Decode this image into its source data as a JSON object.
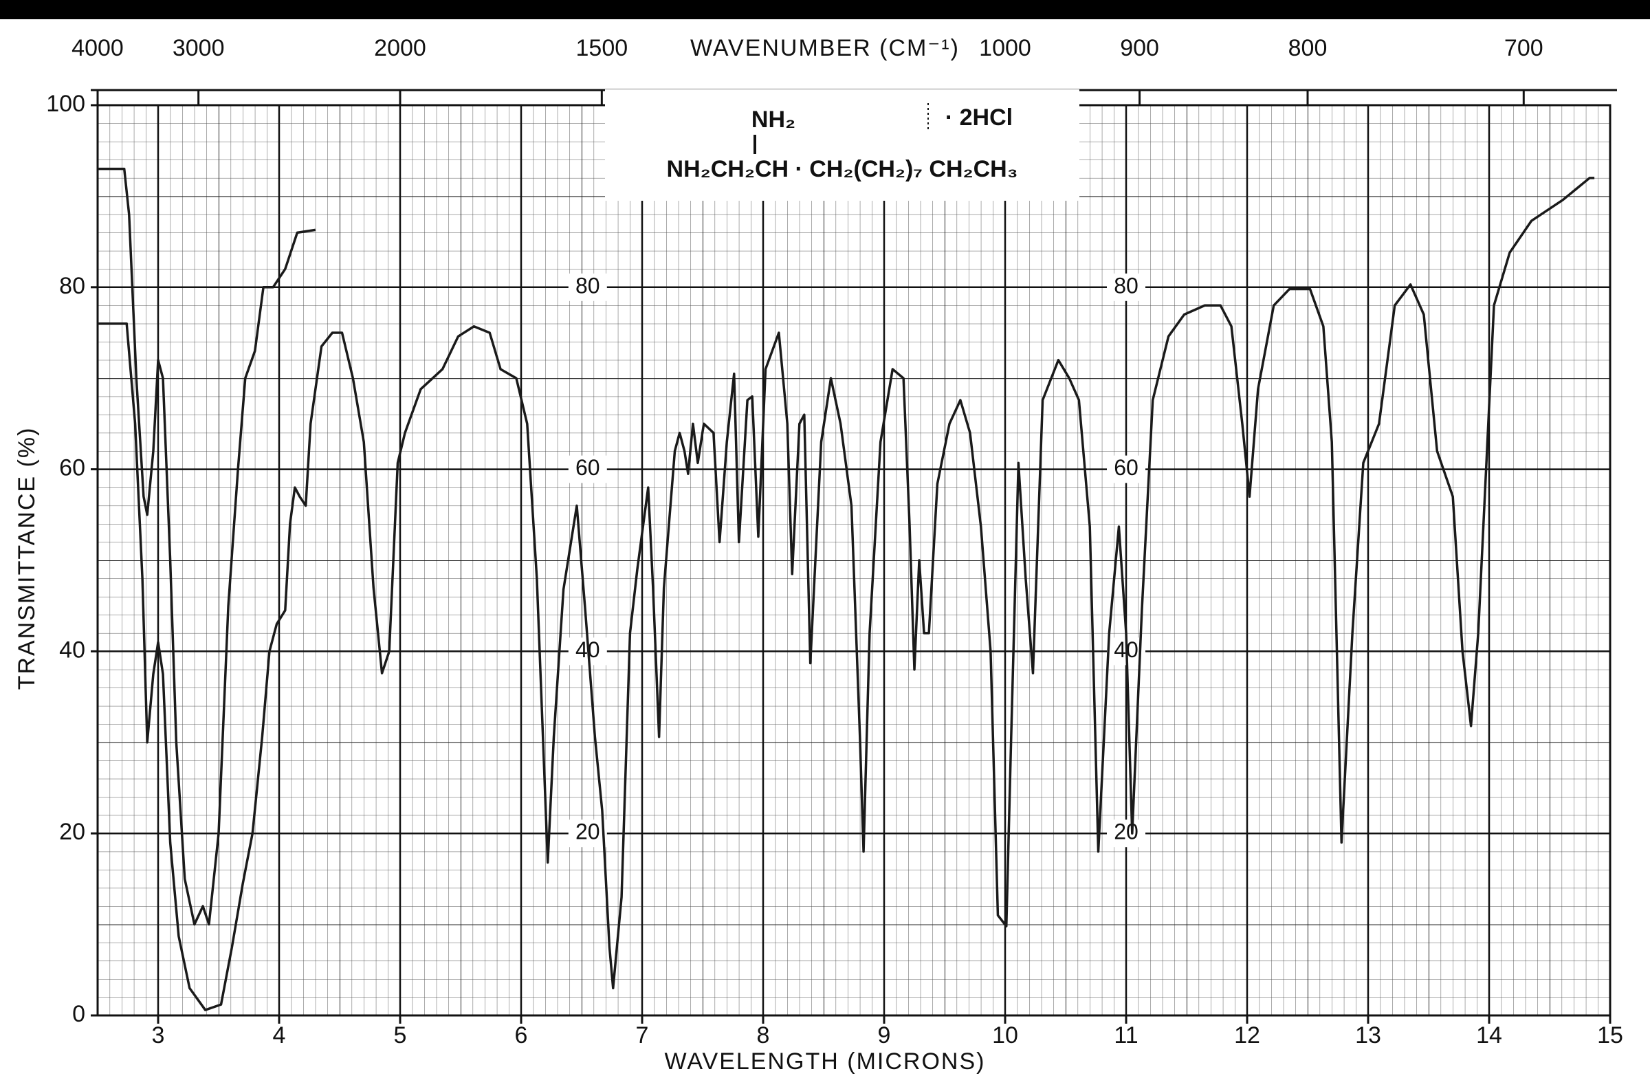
{
  "chart_data": {
    "type": "line",
    "xlabel": "WAVELENGTH (MICRONS)",
    "ylabel": "TRANSMITTANCE (%)",
    "x2label": "WAVENUMBER (CM⁻¹)",
    "xlim": [
      2.5,
      15
    ],
    "ylim": [
      0,
      100
    ],
    "xticks": [
      3,
      4,
      5,
      6,
      7,
      8,
      9,
      10,
      11,
      12,
      13,
      14,
      15
    ],
    "yticks": [
      0,
      20,
      40,
      60,
      80,
      100
    ],
    "x2ticks": [
      4000,
      3000,
      2000,
      1500,
      1000,
      900,
      800,
      700
    ],
    "grid": true,
    "inner_labels": [
      [
        80,
        60,
        40,
        20
      ],
      [
        80,
        60,
        40,
        20
      ]
    ],
    "formula": {
      "amine": "NH₂",
      "salt": "· 2HCl",
      "chain": "NH₂CH₂CH · CH₂(CH₂)₇ CH₂CH₃"
    },
    "series": [
      {
        "color": "#1a1a1a",
        "x": [
          2.5,
          2.74,
          2.81,
          2.87,
          2.91,
          2.96,
          3.0,
          3.04,
          3.1,
          3.17,
          3.26,
          3.39,
          3.52,
          3.61,
          3.7,
          3.78,
          3.86,
          3.92,
          3.98,
          4.05,
          4.09,
          4.13,
          4.17,
          4.22,
          4.26,
          4.35,
          4.44,
          4.52,
          4.61,
          4.7,
          4.78,
          4.85,
          4.91,
          4.98,
          5.04,
          5.17,
          5.35,
          5.48,
          5.61,
          5.74,
          5.83,
          5.96,
          6.05,
          6.13,
          6.22,
          6.27,
          6.35,
          6.46,
          6.53,
          6.61,
          6.67,
          6.73,
          6.76,
          6.83,
          6.9,
          6.96,
          7.05,
          7.09,
          7.14,
          7.18,
          7.27,
          7.31,
          7.35,
          7.38,
          7.42,
          7.46,
          7.51,
          7.59,
          7.64,
          7.7,
          7.76,
          7.8,
          7.87,
          7.91,
          7.96,
          8.02,
          8.13,
          8.2,
          8.24,
          8.3,
          8.34,
          8.39,
          8.48,
          8.56,
          8.64,
          8.73,
          8.8,
          8.83,
          8.88,
          8.97,
          9.07,
          9.16,
          9.21,
          9.25,
          9.29,
          9.33,
          9.37,
          9.44,
          9.54,
          9.63,
          9.71,
          9.8,
          9.88,
          9.94,
          10.01,
          10.05,
          10.11,
          10.17,
          10.23,
          10.31,
          10.44,
          10.53,
          10.61,
          10.7,
          10.77,
          10.86,
          10.94,
          11.0,
          11.05,
          11.13,
          11.22,
          11.35,
          11.48,
          11.65,
          11.78,
          11.87,
          11.96,
          12.02,
          12.09,
          12.22,
          12.35,
          12.52,
          12.63,
          12.7,
          12.78,
          12.87,
          12.96,
          13.09,
          13.22,
          13.35,
          13.46,
          13.57,
          13.7,
          13.78,
          13.85,
          13.91,
          14.04,
          14.17,
          14.35,
          14.61,
          14.83,
          14.87
        ],
        "values": [
          76,
          76,
          65,
          48,
          30,
          37.5,
          41,
          37.5,
          19,
          8.7,
          3,
          0.6,
          1.2,
          7.5,
          14.5,
          20,
          30.6,
          40,
          43,
          44.5,
          54,
          58,
          57,
          56,
          65,
          73.5,
          75,
          75,
          70,
          63,
          47,
          37.6,
          40,
          60.7,
          64,
          68.8,
          71,
          74.6,
          75.7,
          75,
          71,
          70,
          65,
          48,
          16.8,
          30.6,
          46.8,
          56,
          44.5,
          30.6,
          22.5,
          7.5,
          3,
          13,
          42,
          49,
          58,
          47,
          30.6,
          47,
          62,
          64,
          62,
          59.5,
          65,
          60.7,
          65,
          64,
          52,
          63,
          70.5,
          52,
          67.6,
          68,
          52.6,
          71,
          75,
          65,
          48.5,
          65,
          66,
          38.7,
          63,
          70,
          65,
          56,
          30.6,
          18,
          42,
          63,
          71,
          70,
          54,
          38,
          50,
          42,
          42,
          58.4,
          65,
          67.6,
          64,
          53.7,
          40,
          11,
          9.8,
          30.6,
          60.7,
          48,
          37.6,
          67.6,
          72,
          70,
          67.6,
          53.7,
          18,
          42,
          53.7,
          42,
          20,
          44.5,
          67.6,
          74.6,
          77,
          78,
          78,
          75.7,
          65,
          57,
          68.8,
          78,
          79.8,
          79.8,
          75.7,
          63,
          19,
          42,
          60.7,
          65,
          78,
          80.3,
          77,
          62,
          57,
          40,
          31.8,
          42,
          78,
          83.8,
          87.3,
          89.6,
          92,
          92
        ]
      },
      {
        "color": "#1a1a1a",
        "x": [
          2.5,
          2.72,
          2.76,
          2.82,
          2.88,
          2.91,
          2.96,
          3.0,
          3.04,
          3.1,
          3.15,
          3.22,
          3.3,
          3.37,
          3.42,
          3.5,
          3.58,
          3.66,
          3.72,
          3.8,
          3.87,
          3.95,
          4.05,
          4.15,
          4.3
        ],
        "values": [
          93,
          93,
          88,
          70,
          57,
          55,
          62,
          72,
          70,
          50,
          30,
          15,
          10,
          12,
          10,
          20,
          45,
          60,
          70,
          73,
          80,
          80,
          82,
          86,
          86.3
        ]
      }
    ]
  }
}
